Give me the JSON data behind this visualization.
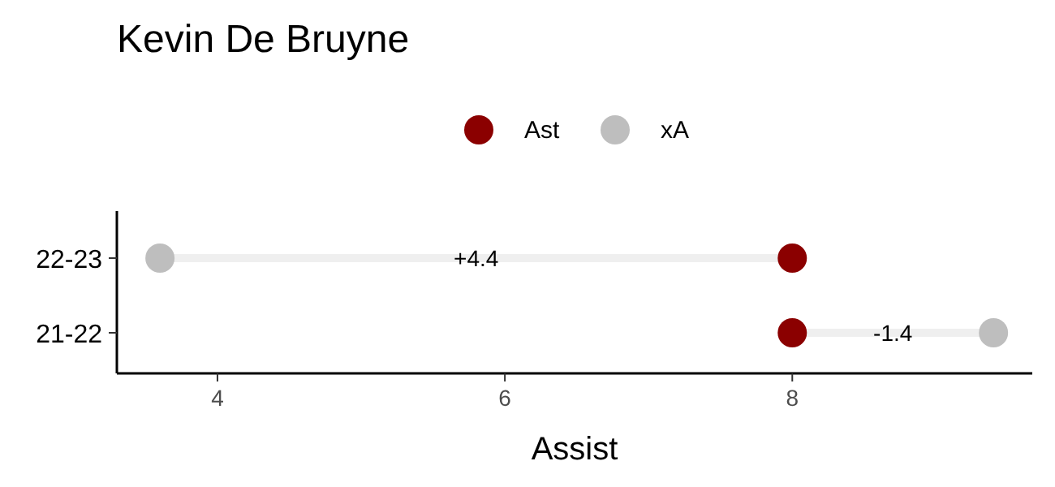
{
  "chart_data": {
    "type": "scatter",
    "title": "Kevin De Bruyne",
    "xlabel": "Assist",
    "orientation": "horizontal",
    "categories": [
      "22-23",
      "21-22"
    ],
    "series": [
      {
        "name": "Ast",
        "color": "#8b0000",
        "values": [
          8,
          8
        ]
      },
      {
        "name": "xA",
        "color": "#bebebe",
        "values": [
          3.6,
          9.4
        ]
      }
    ],
    "xlim": [
      3.3,
      9.67
    ],
    "xticks": [
      4,
      6,
      8
    ],
    "legend": "top",
    "grid": false,
    "marker": "circle",
    "annotations": [
      "+4.4",
      "-1.4"
    ]
  }
}
